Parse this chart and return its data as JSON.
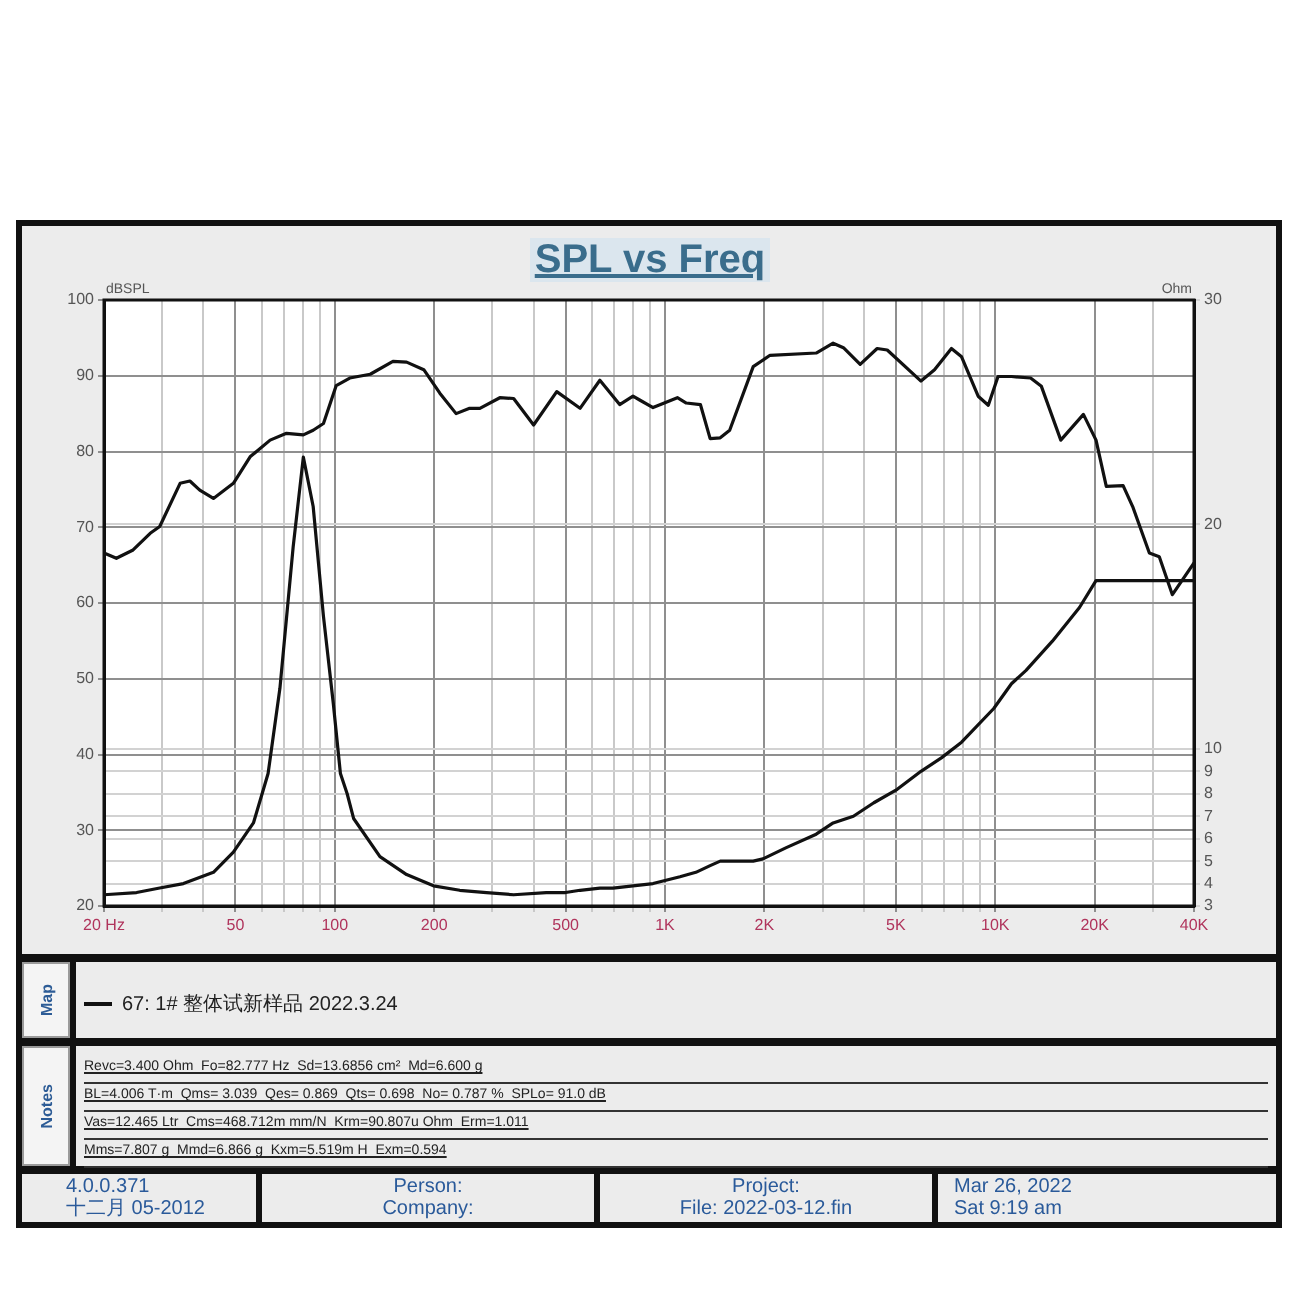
{
  "chart_data": {
    "type": "line",
    "title": "SPL vs Freq",
    "ylabel": "dBSPL",
    "y2label": "Ohm",
    "xlim": [
      20,
      40000
    ],
    "xticks": [
      {
        "value": 20,
        "label": "20 Hz"
      },
      {
        "value": 30,
        "label": null
      },
      {
        "value": 40,
        "label": null
      },
      50,
      {
        "value": 60,
        "label": null
      },
      {
        "value": 70,
        "label": null
      },
      {
        "value": 80,
        "label": null
      },
      {
        "value": 90,
        "label": null
      },
      100,
      200,
      {
        "value": 300,
        "label": null
      },
      {
        "value": 400,
        "label": null
      },
      500,
      {
        "value": 600,
        "label": null
      },
      {
        "value": 700,
        "label": null
      },
      {
        "value": 800,
        "label": null
      },
      {
        "value": 900,
        "label": null
      },
      {
        "value": 1000,
        "label": "1K"
      },
      {
        "value": 2000,
        "label": "2K"
      },
      {
        "value": 3000,
        "label": null
      },
      {
        "value": 4000,
        "label": null
      },
      {
        "value": 5000,
        "label": "5K"
      },
      {
        "value": 6000,
        "label": null
      },
      {
        "value": 7000,
        "label": null
      },
      {
        "value": 8000,
        "label": null
      },
      {
        "value": 9000,
        "label": null
      },
      {
        "value": 10000,
        "label": "10K"
      },
      {
        "value": 20000,
        "label": "20K"
      },
      {
        "value": 30000,
        "label": null
      },
      {
        "value": 40000,
        "label": "40K"
      }
    ],
    "ylim": [
      20,
      100
    ],
    "yticks": [
      20,
      30,
      40,
      50,
      60,
      70,
      80,
      90,
      100
    ],
    "y2lim": [
      3,
      30
    ],
    "y2ticks": [
      3,
      4,
      5,
      6,
      7,
      8,
      9,
      10,
      20,
      30
    ],
    "log": "x",
    "grid": true,
    "legend": "bottom",
    "marker": "none",
    "line_style": "solid",
    "series": [
      {
        "name": "67: 1# 整体试新样品 2022.3.24",
        "color": "#111111",
        "x": [
          20,
          21.8,
          24.5,
          27.6,
          29.5,
          34,
          36.4,
          39,
          42.9,
          49.3,
          55.4,
          63.7,
          71.4,
          80.3,
          86,
          92.4,
          101,
          111,
          128,
          150,
          165,
          186,
          208,
          233,
          256,
          275,
          316,
          348,
          400,
          470,
          553,
          635,
          729,
          800,
          838,
          920,
          1090,
          1160,
          1280,
          1370,
          1470,
          1570,
          1850,
          2080,
          2870,
          3230,
          3470,
          3900,
          4390,
          4710,
          5960,
          6550,
          7370,
          7910,
          8880,
          9530,
          10200,
          11200,
          12800,
          13800,
          15800,
          18500,
          20200,
          21700,
          24400,
          26100,
          29300,
          31400,
          34400,
          40000
        ],
        "values": [
          66.6,
          65.9,
          67.0,
          69.2,
          70.1,
          75.8,
          76.1,
          74.9,
          73.8,
          75.8,
          79.3,
          81.5,
          82.4,
          82.2,
          82.8,
          83.7,
          88.7,
          89.7,
          90.2,
          91.9,
          91.8,
          90.8,
          87.7,
          85.0,
          85.7,
          85.7,
          87.1,
          87.0,
          83.5,
          87.9,
          85.7,
          89.4,
          86.2,
          87.3,
          86.8,
          85.8,
          87.1,
          86.4,
          86.2,
          81.7,
          81.8,
          82.8,
          91.2,
          92.7,
          93.0,
          94.3,
          93.7,
          91.5,
          93.6,
          93.4,
          89.3,
          90.8,
          93.6,
          92.5,
          87.3,
          86.1,
          89.9,
          89.9,
          89.7,
          88.6,
          81.5,
          84.9,
          81.5,
          75.4,
          75.5,
          72.7,
          66.6,
          66.1,
          61.1,
          65.3
        ]
      },
      {
        "color": "#111111",
        "axis": "y2",
        "x": [
          20,
          25.1,
          29.5,
          34.8,
          42.9,
          49.3,
          56.7,
          60.8,
          62.8,
          68.2,
          74.8,
          80.3,
          86,
          92.4,
          99,
          104,
          109,
          114,
          137,
          165,
          199,
          239,
          288,
          348,
          437,
          500,
          553,
          635,
          696,
          800,
          920,
          1110,
          1240,
          1370,
          1470,
          1850,
          1980,
          2330,
          2870,
          3230,
          3720,
          4290,
          5050,
          5960,
          6870,
          7910,
          9900,
          11200,
          12400,
          14900,
          18000,
          20200,
          40000
        ],
        "values": [
          3.5,
          3.6,
          3.8,
          4.0,
          4.5,
          5.4,
          6.7,
          8.2,
          8.9,
          12.7,
          19.0,
          23.0,
          20.8,
          15.9,
          12.0,
          8.9,
          8.0,
          6.9,
          5.2,
          4.4,
          3.9,
          3.7,
          3.6,
          3.5,
          3.6,
          3.6,
          3.7,
          3.8,
          3.8,
          3.9,
          4.0,
          4.3,
          4.5,
          4.8,
          5.0,
          5.0,
          5.1,
          5.6,
          6.2,
          6.7,
          7.0,
          7.6,
          8.2,
          9.0,
          9.6,
          10.3,
          11.8,
          12.9,
          13.5,
          14.8,
          16.3,
          17.5,
          17.5
        ]
      }
    ],
    "annotations": [
      "Map",
      "Notes",
      "Revc=3.400 Ohm  Fo=82.777 Hz  Sd=13.6856 cm²  Md=6.600 g",
      "BL=4.006 T·m  Qms= 3.039  Qes= 0.869  Qts= 0.698  No= 0.787 %  SPLo= 91.0 dB",
      "Vas=12.465 Ltr  Cms=468.712m mm/N  Krm=90.807u Ohm  Erm=1.011",
      "Mms=7.807 g  Mmd=6.866 g  Kxm=5.519m H  Exm=0.594",
      "4.0.0.371",
      "十二月 05-2012",
      "Person:",
      "Company:",
      "Project:",
      "File: 2022-03-12.fin",
      "Mar 26, 2022",
      "Sat 9:19 am"
    ]
  }
}
